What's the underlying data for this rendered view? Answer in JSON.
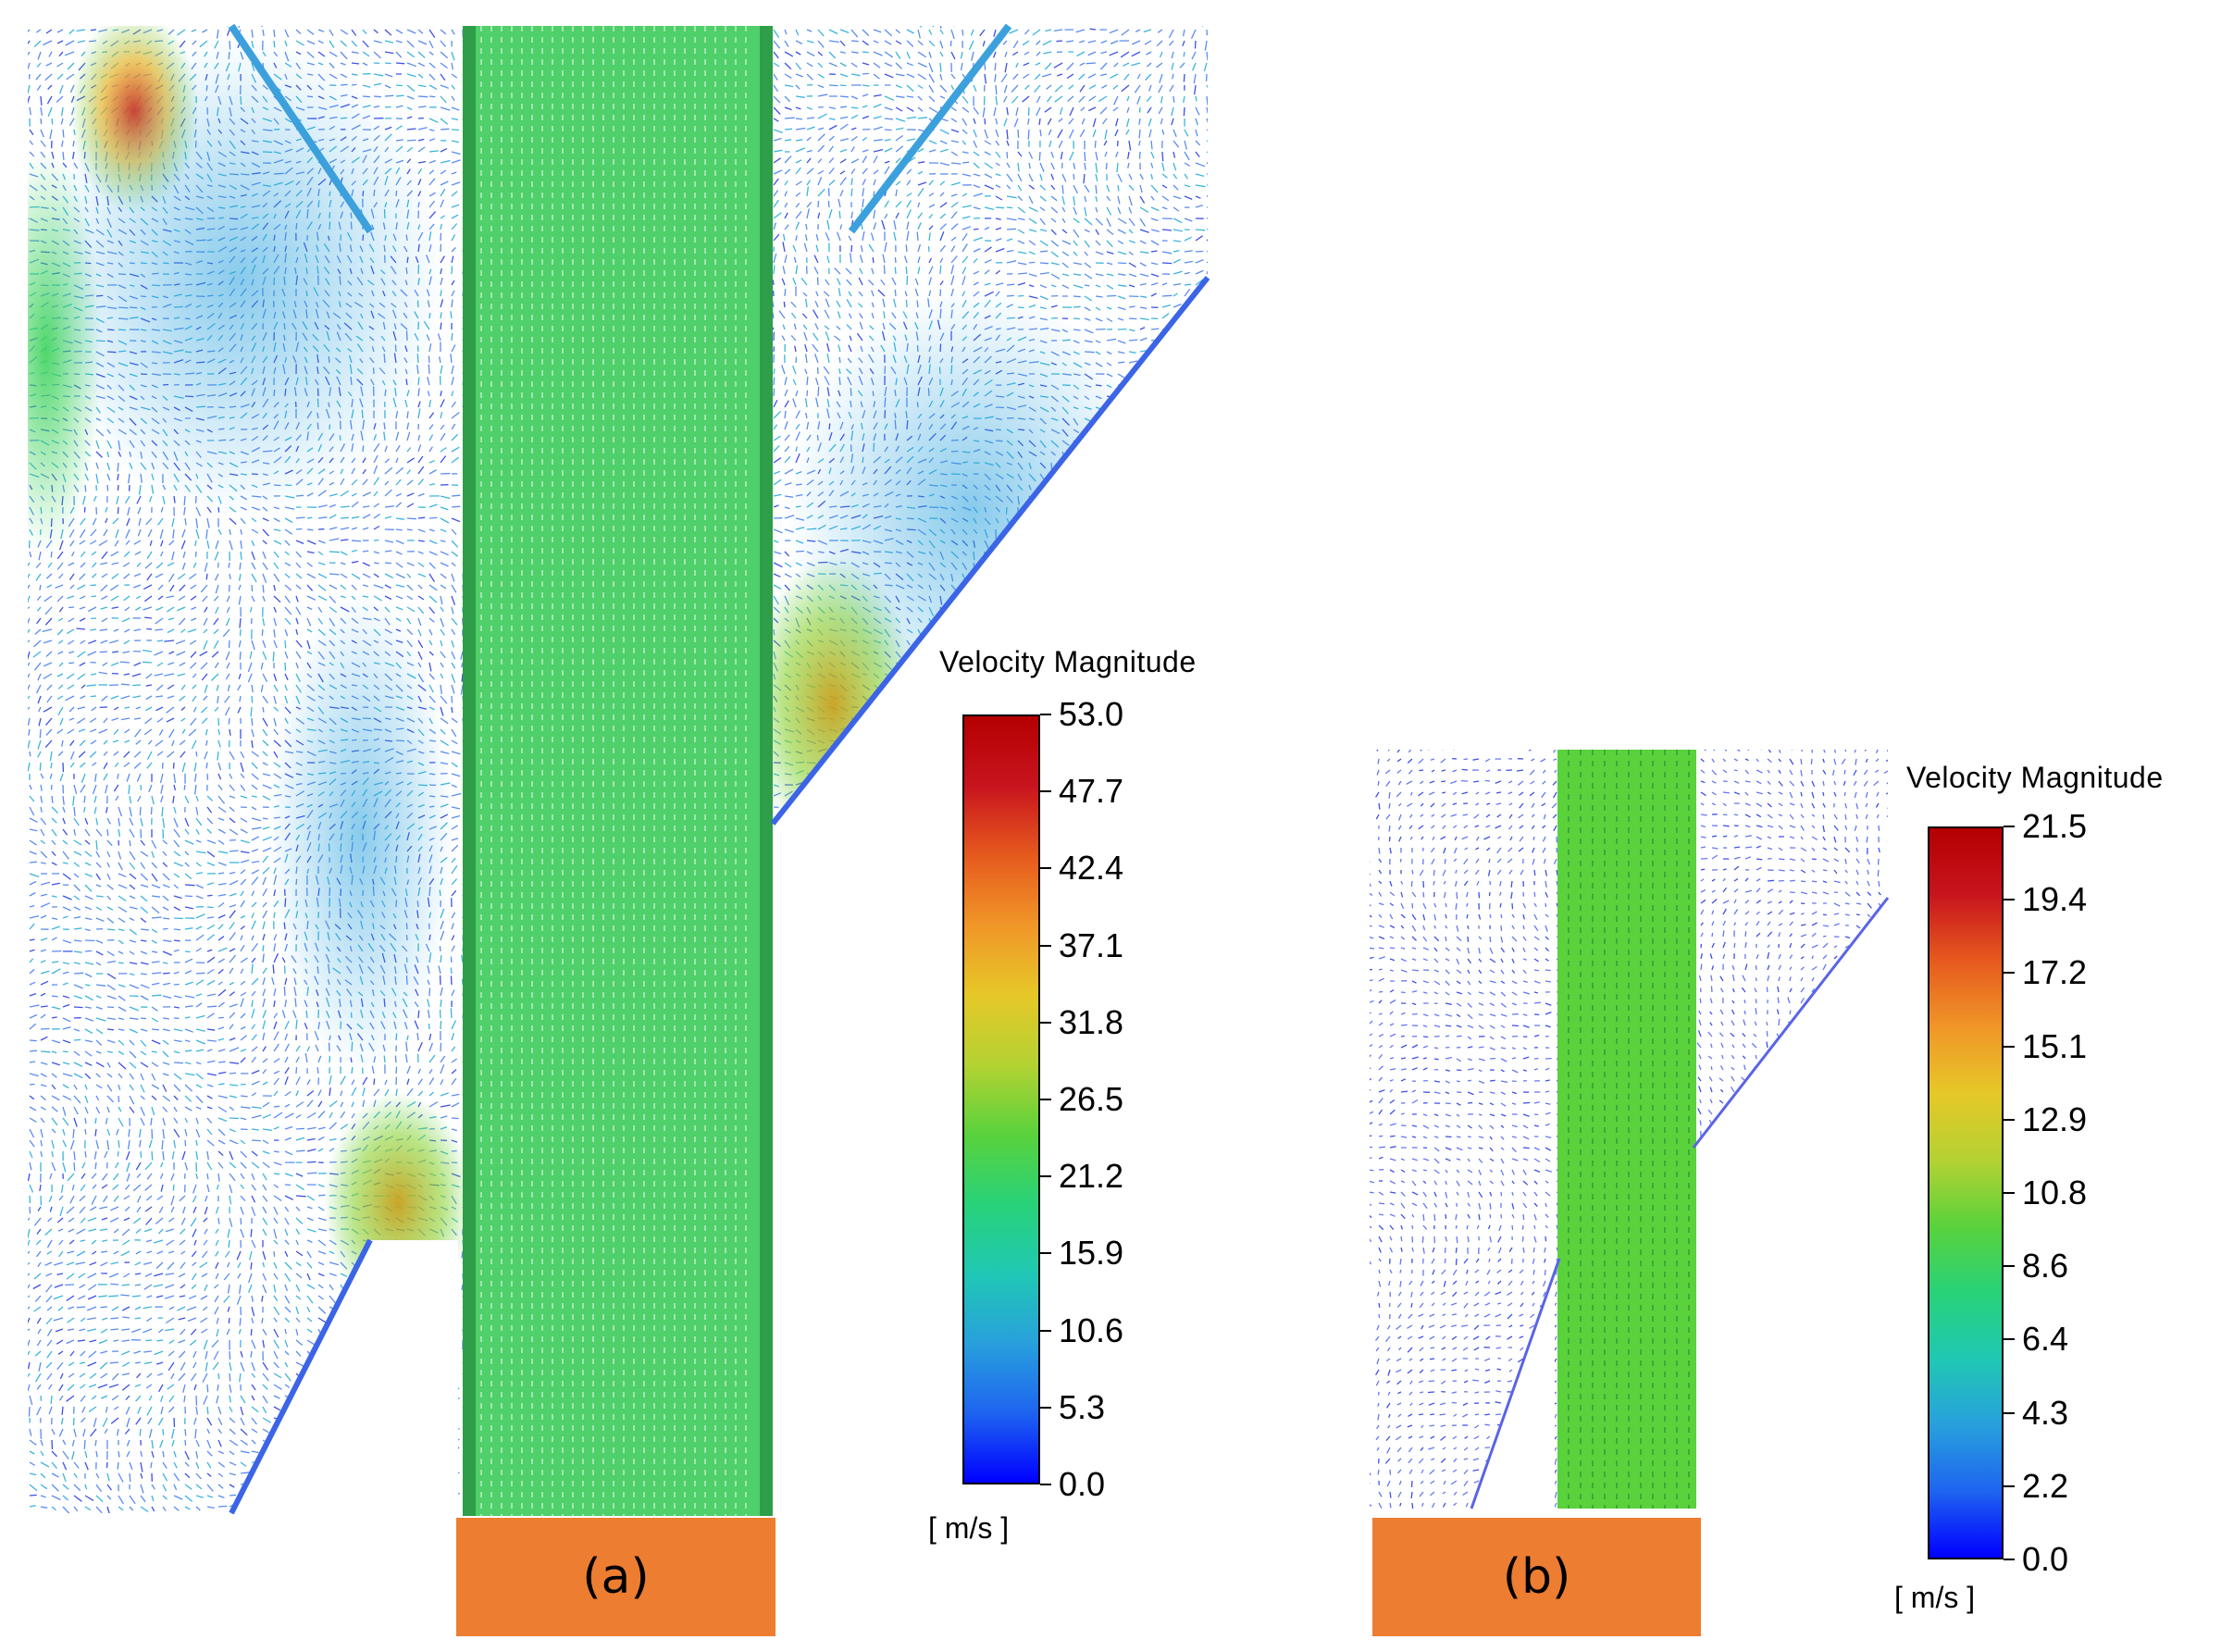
{
  "colormap": [
    "#0000ff",
    "#1e64f0",
    "#28a0dc",
    "#20c8b4",
    "#28d278",
    "#5ad23c",
    "#b4d232",
    "#e6c828",
    "#f09628",
    "#e65a1e",
    "#c8141e",
    "#b40000"
  ],
  "panels": [
    {
      "id": "a",
      "label": "(a)",
      "legend": {
        "title": "Velocity Magnitude",
        "unit": "[ m/s ]",
        "ticks": [
          "53.0",
          "47.7",
          "42.4",
          "37.1",
          "31.8",
          "26.5",
          "21.2",
          "15.9",
          "10.6",
          "5.3",
          "0.0"
        ],
        "max": 53.0,
        "min": 0.0
      }
    },
    {
      "id": "b",
      "label": "(b)",
      "legend": {
        "title": "Velocity Magnitude",
        "unit": "[ m/s ]",
        "ticks": [
          "21.5",
          "19.4",
          "17.2",
          "15.1",
          "12.9",
          "10.8",
          "8.6",
          "6.4",
          "4.3",
          "2.2",
          "0.0"
        ],
        "max": 21.5,
        "min": 0.0
      }
    }
  ]
}
